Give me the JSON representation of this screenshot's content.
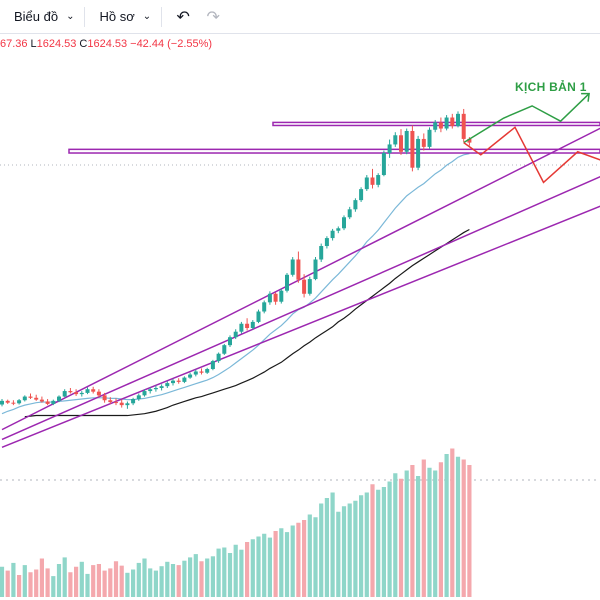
{
  "toolbar": {
    "chart_label": "Biểu đồ",
    "profile_label": "Hồ sơ",
    "undo_icon": "undo-icon",
    "redo_icon": "redo-icon"
  },
  "legend": {
    "high_partial": "67.36",
    "low_key": "L",
    "low": "1624.53",
    "close_key": "C",
    "close": "1624.53",
    "change": "−42.44 (−2.55%)"
  },
  "annotation": {
    "scenario_label": "KỊCH BẢN 1"
  },
  "colors": {
    "up": "#26a69a",
    "down": "#ef5350",
    "up_volume": "#8fd6c9",
    "down_volume": "#f4a8ad",
    "ma_fast": "#7bb8d8",
    "ma_slow": "#1a1a1a",
    "levels": "#9c27b0",
    "scenario_up": "#2e9e45",
    "scenario_down": "#e53935"
  },
  "chart_data": {
    "type": "candlestick",
    "title": "",
    "series": [
      {
        "name": "",
        "ohlc_descr": "open,high,low,close per bar (estimated)",
        "values": [
          [
            1237,
            1246,
            1234,
            1243
          ],
          [
            1243,
            1245,
            1238,
            1240
          ],
          [
            1240,
            1244,
            1236,
            1239
          ],
          [
            1239,
            1246,
            1237,
            1244
          ],
          [
            1244,
            1252,
            1242,
            1250
          ],
          [
            1250,
            1255,
            1246,
            1248
          ],
          [
            1248,
            1253,
            1243,
            1245
          ],
          [
            1245,
            1250,
            1240,
            1242
          ],
          [
            1242,
            1246,
            1236,
            1238
          ],
          [
            1238,
            1245,
            1236,
            1243
          ],
          [
            1243,
            1252,
            1241,
            1250
          ],
          [
            1250,
            1262,
            1249,
            1259
          ],
          [
            1259,
            1264,
            1255,
            1257
          ],
          [
            1257,
            1262,
            1251,
            1254
          ],
          [
            1254,
            1259,
            1250,
            1256
          ],
          [
            1256,
            1265,
            1254,
            1262
          ],
          [
            1262,
            1266,
            1255,
            1258
          ],
          [
            1258,
            1262,
            1249,
            1252
          ],
          [
            1252,
            1256,
            1240,
            1244
          ],
          [
            1244,
            1249,
            1238,
            1241
          ],
          [
            1241,
            1247,
            1236,
            1240
          ],
          [
            1240,
            1245,
            1232,
            1236
          ],
          [
            1236,
            1242,
            1230,
            1239
          ],
          [
            1239,
            1248,
            1236,
            1246
          ],
          [
            1246,
            1255,
            1243,
            1252
          ],
          [
            1252,
            1262,
            1250,
            1259
          ],
          [
            1259,
            1265,
            1255,
            1262
          ],
          [
            1262,
            1268,
            1258,
            1264
          ],
          [
            1264,
            1270,
            1260,
            1267
          ],
          [
            1267,
            1275,
            1264,
            1272
          ],
          [
            1272,
            1279,
            1268,
            1276
          ],
          [
            1276,
            1280,
            1271,
            1274
          ],
          [
            1274,
            1283,
            1272,
            1281
          ],
          [
            1281,
            1289,
            1279,
            1286
          ],
          [
            1286,
            1294,
            1283,
            1291
          ],
          [
            1291,
            1296,
            1286,
            1289
          ],
          [
            1289,
            1297,
            1287,
            1295
          ],
          [
            1295,
            1310,
            1293,
            1308
          ],
          [
            1308,
            1322,
            1305,
            1320
          ],
          [
            1320,
            1336,
            1318,
            1334
          ],
          [
            1334,
            1350,
            1331,
            1347
          ],
          [
            1347,
            1360,
            1344,
            1356
          ],
          [
            1356,
            1372,
            1353,
            1369
          ],
          [
            1369,
            1378,
            1358,
            1362
          ],
          [
            1362,
            1375,
            1360,
            1372
          ],
          [
            1372,
            1392,
            1370,
            1389
          ],
          [
            1389,
            1407,
            1386,
            1404
          ],
          [
            1404,
            1422,
            1400,
            1418
          ],
          [
            1418,
            1420,
            1400,
            1405
          ],
          [
            1405,
            1426,
            1402,
            1423
          ],
          [
            1423,
            1452,
            1420,
            1449
          ],
          [
            1449,
            1478,
            1446,
            1474
          ],
          [
            1474,
            1487,
            1436,
            1441
          ],
          [
            1441,
            1450,
            1412,
            1418
          ],
          [
            1418,
            1446,
            1415,
            1442
          ],
          [
            1442,
            1478,
            1440,
            1474
          ],
          [
            1474,
            1500,
            1470,
            1496
          ],
          [
            1496,
            1512,
            1492,
            1509
          ],
          [
            1509,
            1524,
            1505,
            1521
          ],
          [
            1521,
            1528,
            1517,
            1525
          ],
          [
            1525,
            1546,
            1522,
            1543
          ],
          [
            1543,
            1560,
            1540,
            1556
          ],
          [
            1556,
            1574,
            1552,
            1571
          ],
          [
            1571,
            1592,
            1568,
            1589
          ],
          [
            1589,
            1612,
            1586,
            1608
          ],
          [
            1608,
            1622,
            1590,
            1596
          ],
          [
            1596,
            1615,
            1592,
            1612
          ],
          [
            1612,
            1652,
            1610,
            1648
          ],
          [
            1648,
            1670,
            1640,
            1662
          ],
          [
            1662,
            1682,
            1658,
            1677
          ],
          [
            1677,
            1687,
            1645,
            1650
          ],
          [
            1650,
            1688,
            1646,
            1684
          ],
          [
            1684,
            1693,
            1618,
            1624
          ],
          [
            1624,
            1676,
            1620,
            1671
          ],
          [
            1671,
            1680,
            1652,
            1658
          ],
          [
            1658,
            1690,
            1655,
            1686
          ],
          [
            1686,
            1702,
            1682,
            1698
          ],
          [
            1698,
            1706,
            1682,
            1688
          ],
          [
            1688,
            1710,
            1685,
            1706
          ],
          [
            1706,
            1712,
            1688,
            1692
          ],
          [
            1692,
            1716,
            1690,
            1712
          ],
          [
            1712,
            1720,
            1666,
            1671
          ],
          [
            1671,
            1674,
            1660,
            1665
          ]
        ]
      },
      {
        "name": "",
        "type": "line",
        "values": [
          1222,
          1226,
          1229,
          1233,
          1236,
          1238,
          1240,
          1241,
          1241,
          1241,
          1242,
          1243,
          1244,
          1245,
          1246,
          1247,
          1248,
          1248,
          1248,
          1247,
          1247,
          1246,
          1245,
          1245,
          1246,
          1247,
          1249,
          1251,
          1253,
          1256,
          1259,
          1262,
          1265,
          1268,
          1271,
          1274,
          1277,
          1281,
          1286,
          1292,
          1298,
          1305,
          1312,
          1319,
          1326,
          1334,
          1343,
          1352,
          1359,
          1366,
          1375,
          1385,
          1392,
          1396,
          1403,
          1411,
          1421,
          1431,
          1441,
          1450,
          1460,
          1470,
          1480,
          1491,
          1503,
          1512,
          1522,
          1534,
          1546,
          1558,
          1568,
          1578,
          1585,
          1592,
          1598,
          1606,
          1614,
          1620,
          1628,
          1634,
          1641,
          1645,
          1647
        ]
      },
      {
        "name": "",
        "type": "line",
        "x_start": 4,
        "values": [
          1217,
          1218,
          1219,
          1219,
          1219,
          1219,
          1219,
          1219,
          1219,
          1219,
          1219,
          1219,
          1219,
          1219,
          1219,
          1219,
          1219,
          1219,
          1219,
          1220,
          1221,
          1222,
          1224,
          1226,
          1229,
          1232,
          1236,
          1239,
          1242,
          1245,
          1248,
          1250,
          1253,
          1256,
          1259,
          1262,
          1265,
          1268,
          1272,
          1276,
          1280,
          1285,
          1290,
          1296,
          1301,
          1306,
          1313,
          1320,
          1326,
          1333,
          1339,
          1346,
          1352,
          1358,
          1364,
          1372,
          1378,
          1385,
          1393,
          1400,
          1407,
          1414,
          1421,
          1428,
          1435,
          1443,
          1450,
          1457,
          1464,
          1470,
          1476,
          1482,
          1488,
          1494,
          1500,
          1506,
          1512,
          1518,
          1523
        ]
      }
    ],
    "volume": [
      55,
      48,
      62,
      40,
      58,
      45,
      50,
      70,
      52,
      38,
      60,
      72,
      45,
      55,
      64,
      42,
      58,
      60,
      48,
      52,
      65,
      57,
      44,
      50,
      62,
      70,
      52,
      48,
      56,
      64,
      60,
      58,
      66,
      72,
      78,
      65,
      70,
      74,
      88,
      90,
      80,
      95,
      86,
      100,
      105,
      110,
      115,
      108,
      120,
      125,
      118,
      130,
      135,
      140,
      150,
      145,
      170,
      180,
      190,
      155,
      165,
      170,
      175,
      185,
      190,
      205,
      195,
      200,
      210,
      225,
      215,
      230,
      240,
      220,
      250,
      235,
      230,
      245,
      260,
      270,
      255,
      250,
      240
    ],
    "volume_up": [
      1,
      0,
      1,
      0,
      1,
      0,
      0,
      0,
      0,
      1,
      1,
      1,
      0,
      0,
      1,
      1,
      0,
      0,
      0,
      0,
      0,
      0,
      1,
      1,
      1,
      1,
      1,
      1,
      1,
      1,
      1,
      0,
      1,
      1,
      1,
      0,
      1,
      1,
      1,
      1,
      1,
      1,
      1,
      0,
      1,
      1,
      1,
      1,
      0,
      1,
      1,
      1,
      0,
      0,
      1,
      1,
      1,
      1,
      1,
      1,
      1,
      1,
      1,
      1,
      1,
      0,
      1,
      1,
      1,
      1,
      0,
      1,
      0,
      1,
      0,
      1,
      1,
      0,
      1,
      0,
      1,
      0,
      0
    ],
    "levels": [
      {
        "price_top": 1698,
        "price_bottom": 1693
      },
      {
        "price_top": 1654,
        "price_bottom": 1648
      }
    ],
    "trendlines": [
      {
        "x1": 0,
        "y1": 1196,
        "x2": 110,
        "y2": 1712
      },
      {
        "x1": 0,
        "y1": 1180,
        "x2": 110,
        "y2": 1630
      },
      {
        "x1": 0,
        "y1": 1167,
        "x2": 110,
        "y2": 1580
      }
    ],
    "scenarios": [
      {
        "name": "",
        "points": [
          [
            81,
            1665
          ],
          [
            88,
            1705
          ],
          [
            93,
            1725
          ],
          [
            98,
            1700
          ],
          [
            103,
            1745
          ]
        ]
      },
      {
        "name": "",
        "points": [
          [
            81,
            1665
          ],
          [
            84,
            1645
          ],
          [
            90,
            1690
          ],
          [
            95,
            1600
          ],
          [
            101,
            1650
          ],
          [
            110,
            1620
          ]
        ]
      }
    ],
    "ylim": [
      1130,
      1800
    ]
  }
}
